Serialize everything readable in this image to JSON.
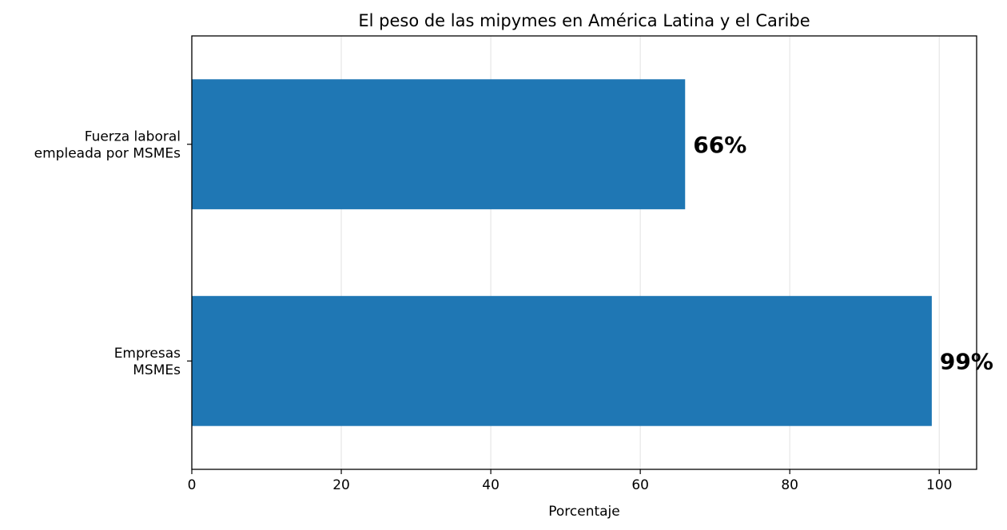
{
  "chart_data": {
    "type": "bar",
    "orientation": "horizontal",
    "title": "El peso de las mipymes en América Latina y el Caribe",
    "xlabel": "Porcentaje",
    "ylabel": "",
    "categories": [
      [
        "Fuerza laboral",
        "empleada por MSMEs"
      ],
      [
        "Empresas",
        "MSMEs"
      ]
    ],
    "values": [
      66,
      99
    ],
    "data_labels": [
      "66%",
      "99%"
    ],
    "xlim": [
      0,
      105
    ],
    "xticks": [
      0,
      20,
      40,
      60,
      80,
      100
    ],
    "xtick_labels": [
      "0",
      "20",
      "40",
      "60",
      "80",
      "100"
    ],
    "grid": "vertical",
    "bar_color": "#1f77b4",
    "grid_color": "#e8e8e8"
  }
}
